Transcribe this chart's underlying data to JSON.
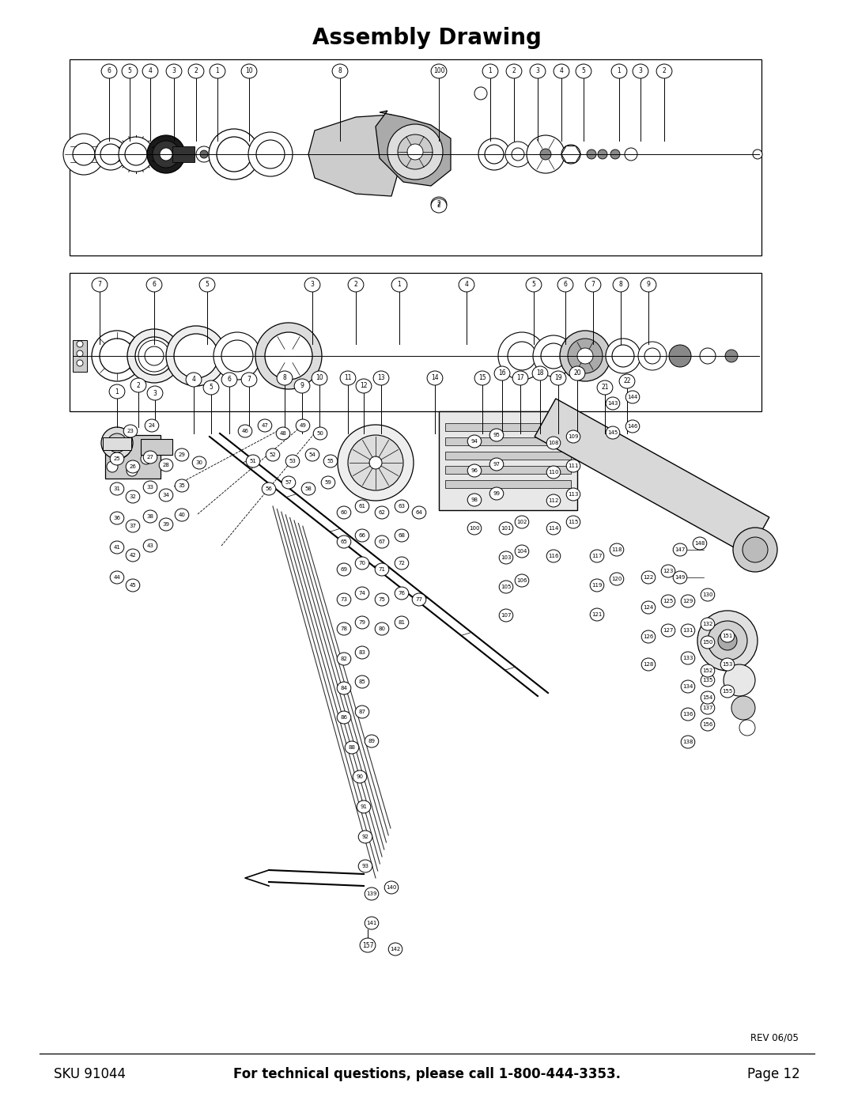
{
  "title": "Assembly Drawing",
  "title_fontsize": 20,
  "title_fontweight": "bold",
  "background_color": "#ffffff",
  "footer_left": "SKU 91044",
  "footer_center": "For technical questions, please call 1-800-444-3353.",
  "footer_right": "Page 12",
  "footer_rev": "REV 06/05",
  "footer_fontsize": 12,
  "footer_center_fontweight": "bold",
  "line_color": "#000000",
  "figsize": [
    10.8,
    13.97
  ],
  "dpi": 100
}
